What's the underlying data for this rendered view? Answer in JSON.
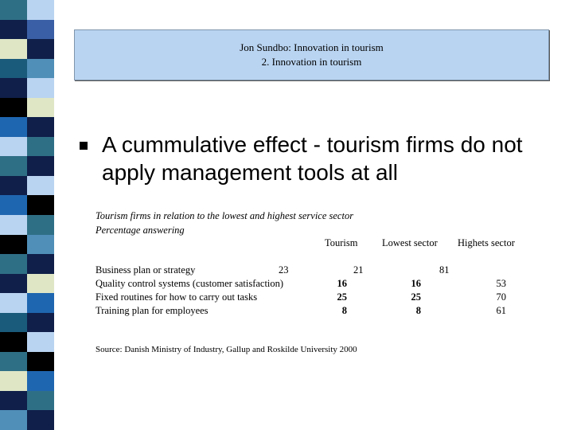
{
  "stripes": [
    {
      "a": "#2f6f86",
      "b": "#b9d4f1"
    },
    {
      "a": "#0f1f49",
      "b": "#3b5fa6"
    },
    {
      "a": "#dfe6c6",
      "b": "#0f1f49"
    },
    {
      "a": "#1a5a7a",
      "b": "#4f8fb8"
    },
    {
      "a": "#0f1f49",
      "b": "#b9d4f1"
    },
    {
      "a": "#000000",
      "b": "#dfe6c6"
    },
    {
      "a": "#1f66b0",
      "b": "#0f1f49"
    },
    {
      "a": "#b9d4f1",
      "b": "#2f6f86"
    },
    {
      "a": "#2f6f86",
      "b": "#0f1f49"
    },
    {
      "a": "#0f1f49",
      "b": "#b9d4f1"
    },
    {
      "a": "#1f66b0",
      "b": "#000000"
    },
    {
      "a": "#b9d4f1",
      "b": "#2f6f86"
    },
    {
      "a": "#000000",
      "b": "#4f8fb8"
    },
    {
      "a": "#2f6f86",
      "b": "#0f1f49"
    },
    {
      "a": "#0f1f49",
      "b": "#dfe6c6"
    },
    {
      "a": "#b9d4f1",
      "b": "#1f66b0"
    },
    {
      "a": "#1a5a7a",
      "b": "#0f1f49"
    },
    {
      "a": "#000000",
      "b": "#b9d4f1"
    },
    {
      "a": "#2f6f86",
      "b": "#000000"
    },
    {
      "a": "#dfe6c6",
      "b": "#1f66b0"
    },
    {
      "a": "#0f1f49",
      "b": "#2f6f86"
    },
    {
      "a": "#4f8fb8",
      "b": "#0f1f49"
    }
  ],
  "title": {
    "line1": "Jon Sundbo: Innovation in tourism",
    "line2": "2. Innovation in tourism"
  },
  "bullet": {
    "text": "A cummulative effect - tourism firms do not apply management tools at all"
  },
  "table": {
    "caption1": "Tourism firms in relation to the lowest and highest service sector",
    "caption2": "Percentage answering",
    "headers": [
      "Tourism",
      "Lowest sector",
      "Highets sector"
    ],
    "rows": [
      {
        "label": "Business plan or  strategy",
        "v1": "23",
        "v2": "21",
        "v3": "81"
      },
      {
        "label": "Quality control systems (customer satisfaction)",
        "v1": "16",
        "v2": "16",
        "v3": "53"
      },
      {
        "label": "Fixed routines for how to carry out tasks",
        "v1": "25",
        "v2": "25",
        "v3": "70"
      },
      {
        "label": "Training plan for employees",
        "v1": "8",
        "v2": "8",
        "v3": "61"
      }
    ],
    "source": "Source: Danish Ministry of Industry, Gallup and Roskilde University  2000"
  }
}
